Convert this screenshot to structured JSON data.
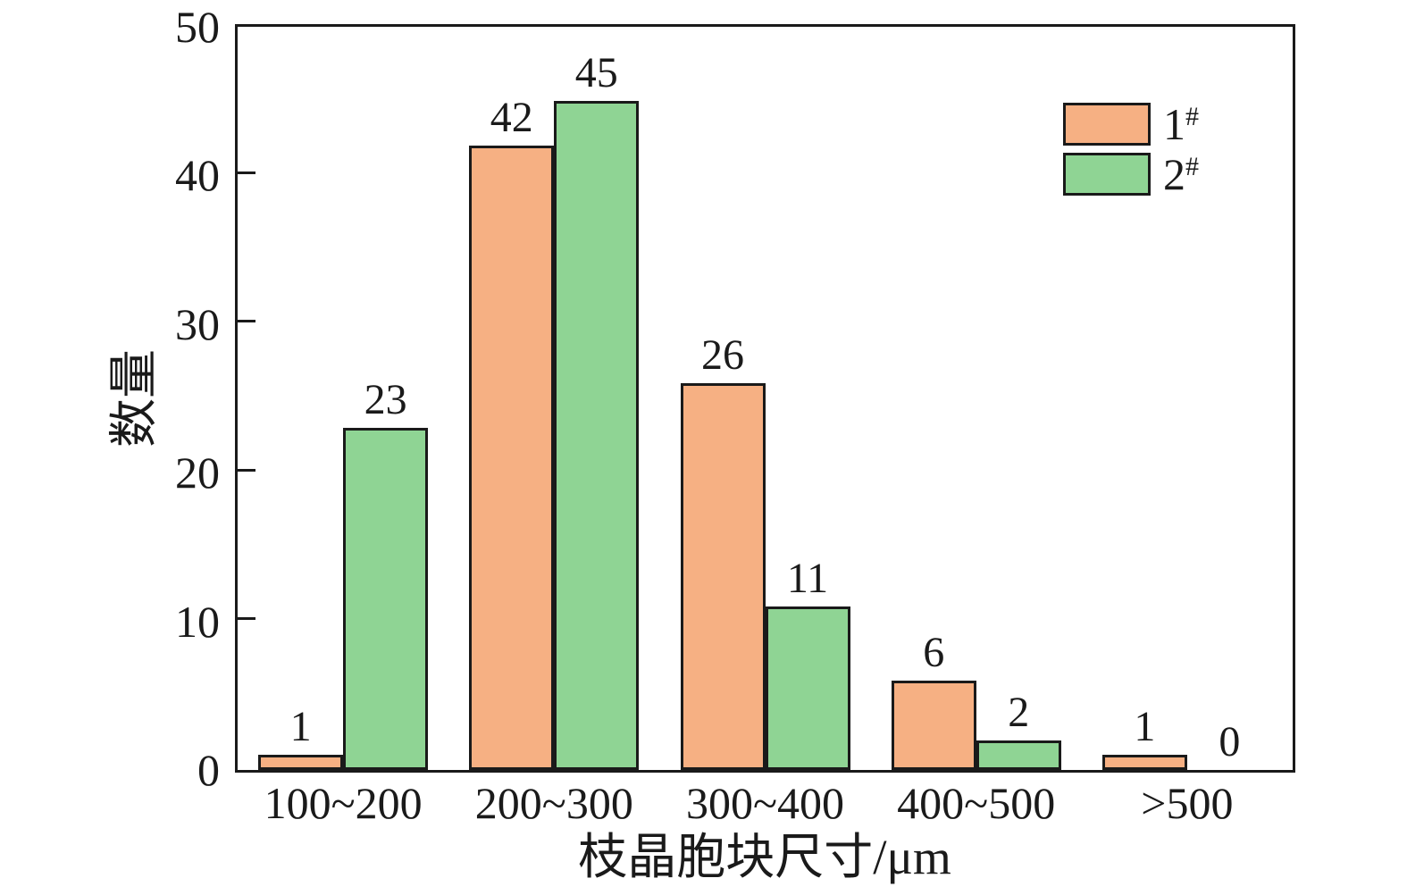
{
  "figure": {
    "background": "#ffffff",
    "text_color": "#1a1a1a",
    "axis_color": "#1a1a1a"
  },
  "chart_data": {
    "type": "bar",
    "title": "",
    "categories": [
      "100~200",
      "200~300",
      "300~400",
      "400~500",
      ">500"
    ],
    "series": [
      {
        "name": "1#",
        "label_base": "1",
        "label_sup": "#",
        "color": "#F6B083",
        "values": [
          1,
          42,
          26,
          6,
          1
        ]
      },
      {
        "name": "2#",
        "label_base": "2",
        "label_sup": "#",
        "color": "#8FD494",
        "values": [
          23,
          45,
          11,
          2,
          0
        ]
      }
    ],
    "xlabel": "枝晶胞块尺寸/μm",
    "ylabel": "数量",
    "ylim": [
      0,
      50
    ],
    "yticks": [
      0,
      10,
      20,
      30,
      40,
      50
    ],
    "bar_edge_color": "#1a1a1a",
    "value_labels": true,
    "grid": false,
    "legend_position": "upper right"
  }
}
